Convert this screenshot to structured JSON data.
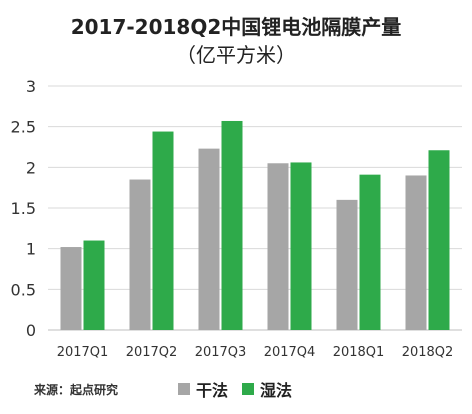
{
  "chart_data": {
    "type": "bar",
    "title": "2017-2018Q2中国锂电池隔膜产量",
    "subtitle": "（亿平方米）",
    "categories": [
      "2017Q1",
      "2017Q2",
      "2017Q3",
      "2017Q4",
      "2018Q1",
      "2018Q2"
    ],
    "series": [
      {
        "name": "干法",
        "values": [
          1.02,
          1.85,
          2.23,
          2.05,
          1.6,
          1.9
        ],
        "color": "#a6a6a6"
      },
      {
        "name": "湿法",
        "values": [
          1.1,
          2.44,
          2.57,
          2.06,
          1.91,
          2.21
        ],
        "color": "#2eaa4a"
      }
    ],
    "ylim": [
      0,
      3
    ],
    "yticks": [
      "0",
      "0.5",
      "1",
      "1.5",
      "2",
      "2.5",
      "3"
    ],
    "grid": true,
    "legend_position": "bottom"
  },
  "source": "来源：起点研究"
}
